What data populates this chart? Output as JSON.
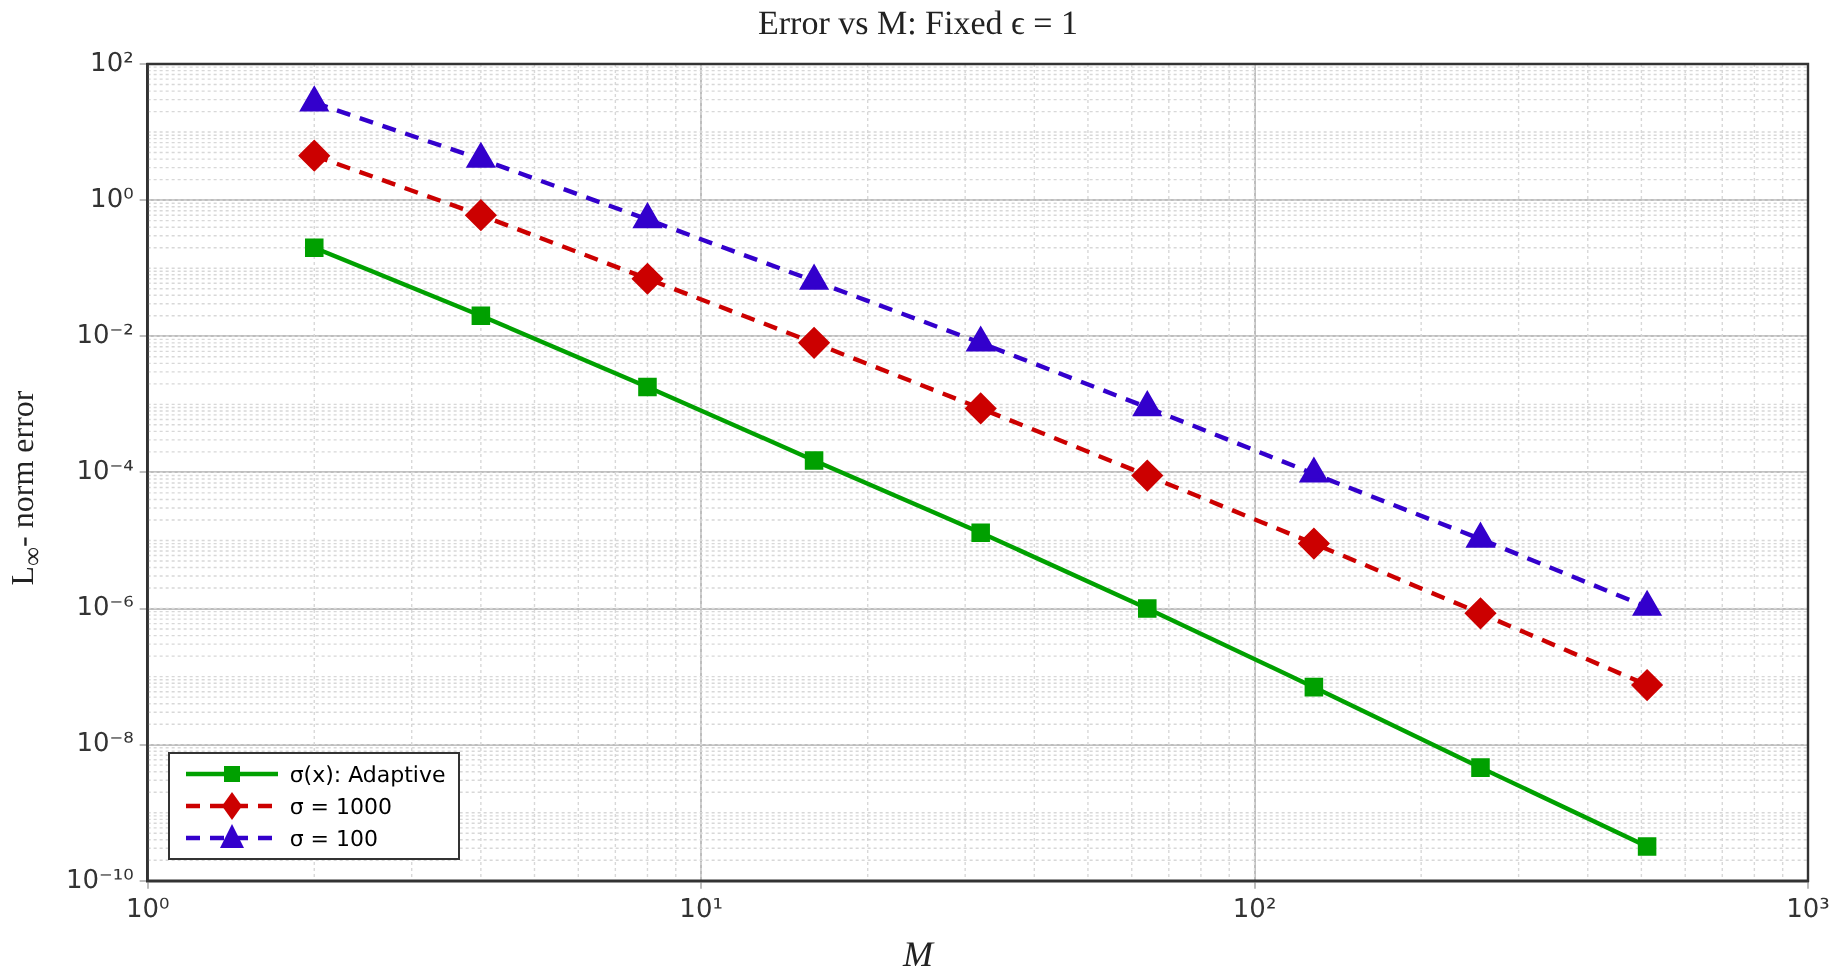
{
  "chart_data": {
    "type": "line",
    "title": "Error vs M: Fixed ϵ = 1",
    "xlabel": "M",
    "ylabel": "L$_{∞}$- norm error",
    "x": [
      2,
      4,
      8,
      16,
      32,
      64,
      128,
      256,
      512
    ],
    "series": [
      {
        "name": "σ(x): Adaptive",
        "color": "#00a000",
        "marker": "square",
        "line_style": "solid",
        "values": [
          0.2,
          0.02,
          0.0018,
          0.00015,
          1.3e-05,
          1e-06,
          7e-08,
          4.6e-09,
          3.2e-10
        ]
      },
      {
        "name": "σ = 1000",
        "color": "#cc0000",
        "marker": "diamond",
        "line_style": "dashed",
        "values": [
          4.5,
          0.6,
          0.07,
          0.008,
          0.00087,
          9e-05,
          9e-06,
          8.5e-07,
          7.5e-08
        ]
      },
      {
        "name": "σ = 100",
        "color": "#3300cc",
        "marker": "triangle",
        "line_style": "dashed",
        "values": [
          27,
          4,
          0.52,
          0.065,
          0.008,
          0.0009,
          9.5e-05,
          1.05e-05,
          1.05e-06
        ]
      }
    ],
    "log": "xy",
    "xlim": [
      1,
      1000
    ],
    "ylim": [
      1e-10,
      100
    ],
    "xticks": [
      {
        "value": 1,
        "label": "10⁰"
      },
      {
        "value": 10,
        "label": "10¹"
      },
      {
        "value": 100,
        "label": "10²"
      },
      {
        "value": 1000,
        "label": "10³"
      }
    ],
    "yticks": [
      {
        "value": 1e-10,
        "label": "10⁻¹⁰"
      },
      {
        "value": 1e-08,
        "label": "10⁻⁸"
      },
      {
        "value": 1e-06,
        "label": "10⁻⁶"
      },
      {
        "value": 0.0001,
        "label": "10⁻⁴"
      },
      {
        "value": 0.01,
        "label": "10⁻²"
      },
      {
        "value": 1,
        "label": "10⁰"
      },
      {
        "value": 100,
        "label": "10²"
      }
    ],
    "grid": true,
    "legend": "bottom left"
  }
}
